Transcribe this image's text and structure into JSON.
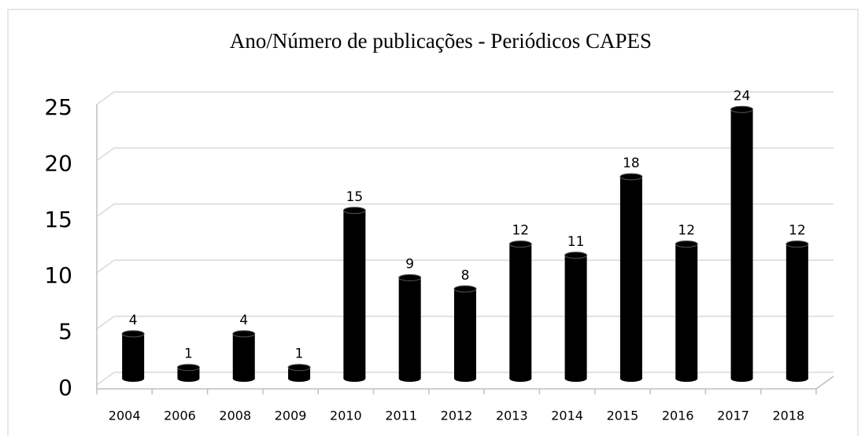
{
  "chart_data": {
    "type": "bar",
    "title": "Ano/Número de publicações - Periódicos CAPES",
    "categories": [
      "2004",
      "2006",
      "2008",
      "2009",
      "2010",
      "2011",
      "2012",
      "2013",
      "2014",
      "2015",
      "2016",
      "2017",
      "2018"
    ],
    "values": [
      4,
      1,
      4,
      1,
      15,
      9,
      8,
      12,
      11,
      18,
      12,
      24,
      12
    ],
    "color": "#000000",
    "ylim": [
      0,
      25
    ],
    "yticks": [
      0,
      5,
      10,
      15,
      20,
      25
    ],
    "grid": true
  }
}
